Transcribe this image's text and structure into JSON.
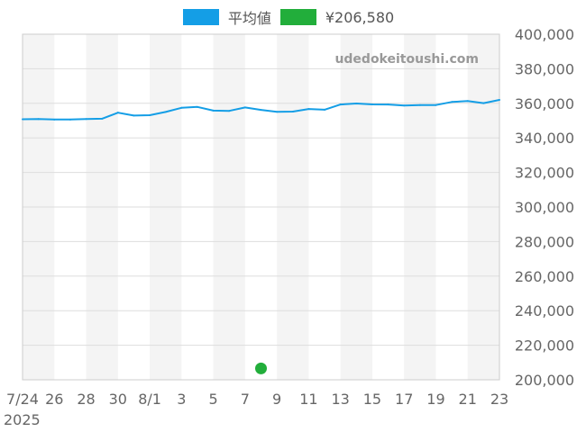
{
  "legend": {
    "average_label": "平均値",
    "point_label": "¥206,580"
  },
  "watermark": "udedokeitoushi.com",
  "colors": {
    "average_line": "#149ee6",
    "point": "#22ae3b",
    "band": "#f4f4f4",
    "grid": "#dddddd",
    "axis_text": "#666666",
    "watermark": "#999999"
  },
  "chart_data": {
    "type": "line",
    "x_start": "2025-07-24",
    "x_end": "2025-08-23",
    "x_tick_labels": [
      "7/24",
      "26",
      "28",
      "30",
      "8/1",
      "3",
      "5",
      "7",
      "9",
      "11",
      "13",
      "15",
      "17",
      "19",
      "21",
      "23"
    ],
    "x_sub_label": "2025",
    "ylim": [
      200000,
      400000
    ],
    "y_tick_labels": [
      "400,000",
      "380,000",
      "360,000",
      "340,000",
      "320,000",
      "300,000",
      "280,000",
      "260,000",
      "240,000",
      "220,000",
      "200,000"
    ],
    "grid": true,
    "legend_position": "top-center",
    "series": [
      {
        "name": "平均値",
        "x": [
          "2025-07-24",
          "2025-07-25",
          "2025-07-26",
          "2025-07-27",
          "2025-07-28",
          "2025-07-29",
          "2025-07-30",
          "2025-07-31",
          "2025-08-01",
          "2025-08-02",
          "2025-08-03",
          "2025-08-04",
          "2025-08-05",
          "2025-08-06",
          "2025-08-07",
          "2025-08-08",
          "2025-08-09",
          "2025-08-10",
          "2025-08-11",
          "2025-08-12",
          "2025-08-13",
          "2025-08-14",
          "2025-08-15",
          "2025-08-16",
          "2025-08-17",
          "2025-08-18",
          "2025-08-19",
          "2025-08-20",
          "2025-08-21",
          "2025-08-22",
          "2025-08-23"
        ],
        "values": [
          350800,
          350900,
          350600,
          350600,
          350900,
          351100,
          354600,
          352900,
          353100,
          355000,
          357400,
          357900,
          355800,
          355600,
          357600,
          356200,
          355100,
          355200,
          356700,
          356300,
          359300,
          359900,
          359400,
          359300,
          358700,
          359000,
          359000,
          360800,
          361300,
          360100,
          362000
        ]
      },
      {
        "name": "¥206,580",
        "type": "scatter",
        "x": [
          "2025-08-08"
        ],
        "values": [
          206580
        ]
      }
    ]
  }
}
